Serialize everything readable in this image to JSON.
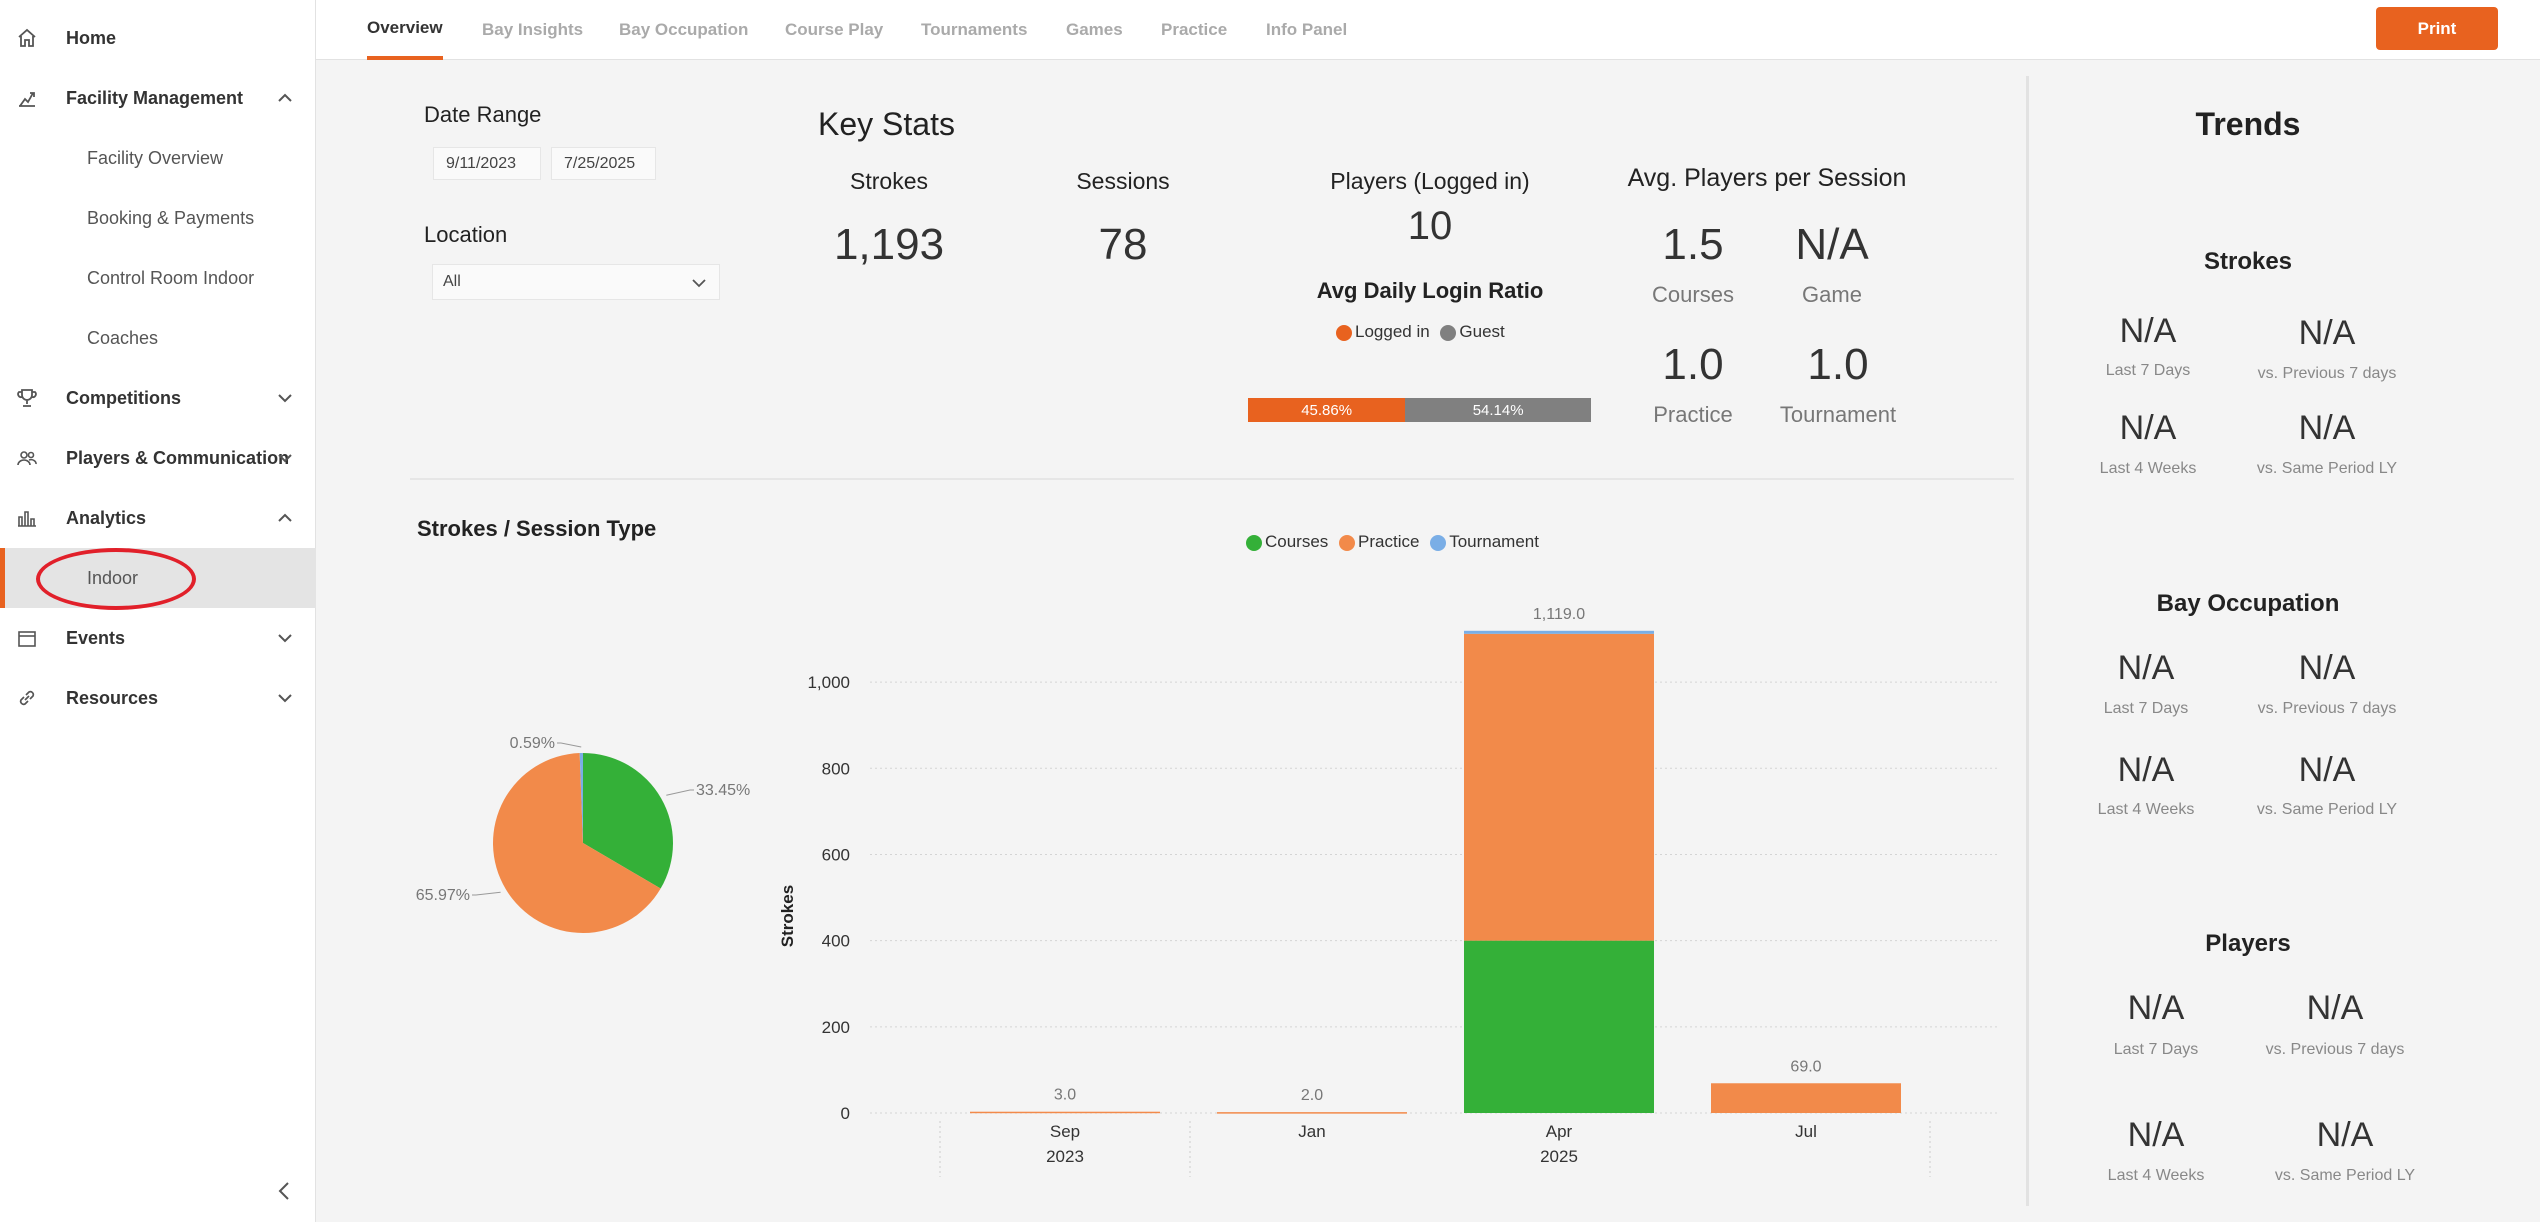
{
  "sidebar": {
    "items": [
      {
        "label": "Home",
        "icon": "home-icon"
      },
      {
        "label": "Facility Management",
        "icon": "facility-icon"
      },
      {
        "label": "Facility Overview"
      },
      {
        "label": "Booking & Payments"
      },
      {
        "label": "Control Room Indoor"
      },
      {
        "label": "Coaches"
      },
      {
        "label": "Competitions",
        "icon": "trophy-icon"
      },
      {
        "label": "Players & Communication",
        "icon": "users-icon"
      },
      {
        "label": "Analytics",
        "icon": "bar-chart-icon"
      },
      {
        "label": "Indoor"
      },
      {
        "label": "Events",
        "icon": "calendar-icon"
      },
      {
        "label": "Resources",
        "icon": "link-icon"
      }
    ]
  },
  "tabs": [
    "Overview",
    "Bay Insights",
    "Bay Occupation",
    "Course Play",
    "Tournaments",
    "Games",
    "Practice",
    "Info Panel"
  ],
  "print_label": "Print",
  "filters": {
    "date_range_label": "Date Range",
    "date_start": "9/11/2023",
    "date_end": "7/25/2025",
    "location_label": "Location",
    "location_value": "All"
  },
  "key_stats": {
    "title": "Key Stats",
    "strokes_label": "Strokes",
    "strokes_value": "1,193",
    "sessions_label": "Sessions",
    "sessions_value": "78",
    "players_label": "Players (Logged in)",
    "players_value": "10",
    "login_ratio_label": "Avg Daily Login Ratio",
    "legend_logged": "Logged in",
    "legend_guest": "Guest",
    "logged_pct": "45.86%",
    "guest_pct": "54.14%",
    "logged_fraction": 0.4586,
    "avg_players_label": "Avg. Players per Session",
    "courses_value": "1.5",
    "courses_label": "Courses",
    "game_value": "N/A",
    "game_label": "Game",
    "practice_value": "1.0",
    "practice_label": "Practice",
    "tournament_value": "1.0",
    "tournament_label": "Tournament"
  },
  "strokes_section": {
    "title": "Strokes / Session Type",
    "legend": [
      "Courses",
      "Practice",
      "Tournament"
    ]
  },
  "colors": {
    "accent": "#e8621f",
    "courses": "#34b038",
    "practice": "#f28a4a",
    "tournament": "#7aaee6",
    "guest": "#808080",
    "logged_in": "#e8621f"
  },
  "chart_data": [
    {
      "type": "pie",
      "labels": [
        "Courses",
        "Practice",
        "Tournament"
      ],
      "values": [
        33.45,
        65.97,
        0.59
      ],
      "label_texts": [
        "33.45%",
        "65.97%",
        "0.59%"
      ]
    },
    {
      "type": "bar",
      "stacked": true,
      "categories": [
        "Sep",
        "Jan",
        "Apr",
        "Jul"
      ],
      "year_labels": [
        "2023",
        "",
        "2025",
        ""
      ],
      "series": [
        {
          "name": "Courses",
          "values": [
            0,
            0,
            400,
            0
          ]
        },
        {
          "name": "Practice",
          "values": [
            3,
            2,
            712,
            69
          ]
        },
        {
          "name": "Tournament",
          "values": [
            0,
            0,
            7,
            0
          ]
        }
      ],
      "totals": [
        "3.0",
        "2.0",
        "1,119.0",
        "69.0"
      ],
      "ylabel": "Strokes",
      "ylim": [
        0,
        1100
      ],
      "yticks": [
        "0",
        "200",
        "400",
        "600",
        "800",
        "1,000"
      ],
      "ytick_values": [
        0,
        200,
        400,
        600,
        800,
        1000
      ]
    }
  ],
  "trends": {
    "title": "Trends",
    "sections": [
      {
        "title": "Strokes",
        "values": [
          "N/A",
          "N/A",
          "N/A",
          "N/A"
        ],
        "labels": [
          "Last 7 Days",
          "vs. Previous 7 days",
          "Last 4 Weeks",
          "vs. Same Period LY"
        ]
      },
      {
        "title": "Bay Occupation",
        "values": [
          "N/A",
          "N/A",
          "N/A",
          "N/A"
        ],
        "labels": [
          "Last 7 Days",
          "vs. Previous 7 days",
          "Last 4 Weeks",
          "vs. Same Period LY"
        ]
      },
      {
        "title": "Players",
        "values": [
          "N/A",
          "N/A",
          "N/A",
          "N/A"
        ],
        "labels": [
          "Last 7 Days",
          "vs. Previous 7 days",
          "Last 4 Weeks",
          "vs. Same Period LY"
        ]
      }
    ]
  }
}
